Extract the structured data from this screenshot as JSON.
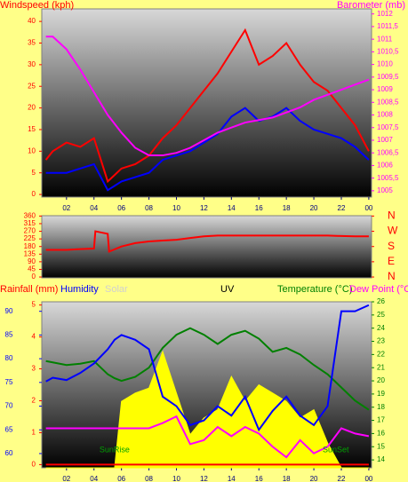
{
  "chart_data": [
    {
      "type": "line",
      "labels": [
        {
          "text": "Windspeed (kph)",
          "color": "#ff0000"
        },
        {
          "text": "Barometer (mb)",
          "color": "#ff00ff"
        }
      ],
      "x": [
        0.5,
        1,
        2,
        3,
        4,
        5,
        6,
        7,
        8,
        9,
        10,
        11,
        12,
        13,
        14,
        15,
        16,
        17,
        18,
        19,
        20,
        21,
        22,
        23,
        24
      ],
      "xlim": [
        0.2,
        24.2
      ],
      "xticks": [
        {
          "value": 2,
          "label": "02"
        },
        {
          "value": 4,
          "label": "04"
        },
        {
          "value": 6,
          "label": "06"
        },
        {
          "value": 8,
          "label": "08"
        },
        10,
        12,
        14,
        16,
        18,
        20,
        22,
        {
          "value": 24,
          "label": "00"
        }
      ],
      "ylim": [
        -0.6,
        42.9
      ],
      "yticks": [
        0,
        5,
        10,
        15,
        20,
        25,
        30,
        35,
        40
      ],
      "ytick_color": "#ff0000",
      "y2lim": [
        1004.75,
        1012.2
      ],
      "y2ticks": [
        1005,
        {
          "value": 1005.5,
          "label": "1005,5"
        },
        1006,
        {
          "value": 1006.5,
          "label": "1006,5"
        },
        1007,
        {
          "value": 1007.5,
          "label": "1007,5"
        },
        1008,
        {
          "value": 1008.5,
          "label": "1008,5"
        },
        1009,
        {
          "value": 1009.5,
          "label": "1009,5"
        },
        1010,
        {
          "value": 1010.5,
          "label": "1010,5"
        },
        1011,
        {
          "value": 1011.5,
          "label": "1011,5"
        },
        1012
      ],
      "y2tick_color": "#ff00ff",
      "series": [
        {
          "color": "#ff0000",
          "axis": "y",
          "values": [
            8,
            10,
            12,
            11,
            13,
            3,
            6,
            7,
            9,
            13,
            16,
            20,
            24,
            28,
            33,
            38,
            30,
            32,
            35,
            30,
            26,
            24,
            20,
            16,
            10
          ]
        },
        {
          "color": "#0000ff",
          "axis": "y",
          "values": [
            5,
            5,
            5,
            6,
            7,
            1,
            3,
            4,
            5,
            8,
            9,
            10,
            12,
            14,
            18,
            20,
            17,
            18,
            20,
            17,
            15,
            14,
            13,
            11,
            8
          ]
        },
        {
          "color": "#ff00ff",
          "axis": "y2",
          "values": [
            1011.1,
            1011.1,
            1010.6,
            1009.8,
            1008.9,
            1008.0,
            1007.3,
            1006.7,
            1006.4,
            1006.4,
            1006.5,
            1006.7,
            1007.0,
            1007.3,
            1007.5,
            1007.7,
            1007.8,
            1007.9,
            1008.1,
            1008.3,
            1008.6,
            1008.8,
            1009.0,
            1009.2,
            1009.4
          ]
        }
      ]
    },
    {
      "type": "line",
      "x": [
        0.5,
        1,
        2,
        3,
        4,
        4.1,
        5,
        5.1,
        6,
        7,
        8,
        9,
        10,
        11,
        12,
        13,
        14,
        15,
        16,
        17,
        18,
        19,
        20,
        21,
        22,
        23,
        24
      ],
      "xlim": [
        0.2,
        24.2
      ],
      "ylim": [
        -5,
        362
      ],
      "yticks": [
        0,
        45,
        90,
        135,
        180,
        225,
        270,
        315,
        360
      ],
      "ytick_color": "#ff0000",
      "y2lim": [
        -5,
        362
      ],
      "y2ticks": [
        {
          "value": 360,
          "label": "N"
        },
        {
          "value": 270,
          "label": "W"
        },
        {
          "value": 180,
          "label": "S"
        },
        {
          "value": 90,
          "label": "E"
        },
        {
          "value": 0,
          "label": "N"
        }
      ],
      "y2tick_color": "#ff0000",
      "series": [
        {
          "color": "#ff0000",
          "axis": "y",
          "values": [
            160,
            160,
            160,
            165,
            168,
            270,
            255,
            150,
            180,
            200,
            210,
            215,
            220,
            230,
            240,
            245,
            245,
            245,
            245,
            245,
            245,
            245,
            245,
            245,
            242,
            240,
            240
          ]
        }
      ]
    },
    {
      "type": "line",
      "labels": [
        {
          "text": "Rainfall (mm)",
          "color": "#ff0000"
        },
        {
          "text": "Humidity",
          "color": "#0000ff"
        },
        {
          "text": "Solar",
          "color": "#d0d0d0"
        },
        {
          "text": "UV",
          "color": "#000000"
        },
        {
          "text": "Temperature (°C)",
          "color": "#008000"
        },
        {
          "text": "Dew Point (°C)",
          "color": "#ff00ff"
        }
      ],
      "x": [
        0.5,
        1,
        2,
        3,
        4,
        5,
        5.5,
        6,
        7,
        8,
        9,
        10,
        11,
        12,
        13,
        14,
        15,
        16,
        17,
        18,
        19,
        20,
        21,
        22,
        23,
        24
      ],
      "xlim": [
        0.2,
        24.2
      ],
      "xticks": [
        {
          "value": 2,
          "label": "02"
        },
        {
          "value": 4,
          "label": "04"
        },
        {
          "value": 6,
          "label": "06"
        },
        {
          "value": 8,
          "label": "08"
        },
        10,
        12,
        14,
        16,
        18,
        20,
        22,
        {
          "value": 24,
          "label": "00"
        }
      ],
      "ylim": [
        57,
        92
      ],
      "yticks": [
        60,
        65,
        70,
        75,
        80,
        85,
        90
      ],
      "ytick_color": "#0000ff",
      "y2lim": [
        13.4,
        26
      ],
      "y2ticks": [
        14,
        15,
        16,
        17,
        18,
        19,
        20,
        21,
        22,
        23,
        24,
        25,
        26
      ],
      "y2tick_color": "#008000",
      "y3lim": [
        -0.1,
        5.1
      ],
      "y3ticks": [
        0,
        1,
        2,
        3,
        4,
        5
      ],
      "y3tick_color": "#ff0000",
      "y4lim": [
        0,
        100
      ],
      "annotations": [
        {
          "text": "SunRise",
          "x": 5.5
        },
        {
          "text": "SunSet",
          "x": 21.6
        }
      ],
      "series": [
        {
          "color": "#ffff00",
          "axis": "y4",
          "style": "area",
          "values": [
            0,
            0,
            0,
            0,
            0,
            0,
            0,
            40,
            45,
            48,
            70,
            45,
            20,
            30,
            35,
            55,
            40,
            50,
            45,
            40,
            30,
            35,
            15,
            0,
            0,
            0
          ]
        },
        {
          "color": "#008000",
          "axis": "y2",
          "values": [
            21.5,
            21.4,
            21.2,
            21.3,
            21.5,
            20.5,
            20.2,
            20.0,
            20.3,
            21.0,
            22.5,
            23.5,
            24.0,
            23.5,
            22.8,
            23.5,
            23.8,
            23.2,
            22.2,
            22.5,
            22.0,
            21.2,
            20.5,
            19.5,
            18.5,
            17.8
          ]
        },
        {
          "color": "#ff00ff",
          "axis": "y2",
          "values": [
            16.4,
            16.4,
            16.4,
            16.4,
            16.4,
            16.4,
            16.4,
            16.4,
            16.4,
            16.4,
            16.8,
            17.3,
            15.2,
            15.5,
            16.5,
            15.8,
            16.5,
            16.0,
            15.0,
            14.2,
            15.5,
            14.5,
            15.0,
            16.4,
            16.0,
            15.8
          ]
        },
        {
          "color": "#0000ff",
          "axis": "y",
          "values": [
            75.2,
            76,
            75.5,
            77,
            79,
            82,
            84,
            85,
            84,
            82,
            72,
            70,
            66,
            67,
            70,
            68,
            72,
            65,
            69,
            72,
            68,
            66,
            70,
            90,
            90,
            91.3
          ]
        },
        {
          "color": "#ff0000",
          "axis": "y3",
          "values": [
            0,
            0,
            0,
            0,
            0,
            0,
            0,
            0,
            0,
            0,
            0,
            0,
            0,
            0,
            0,
            0,
            0,
            0,
            0,
            0,
            0,
            0,
            0,
            0,
            0,
            0
          ]
        }
      ]
    }
  ]
}
